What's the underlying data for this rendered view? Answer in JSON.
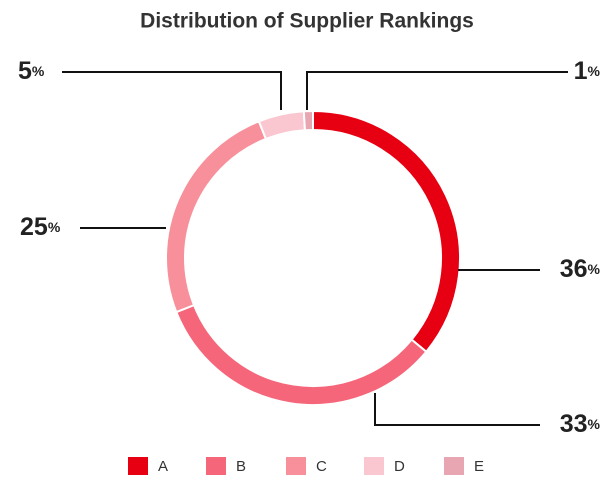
{
  "chart_data": {
    "type": "donut",
    "title": "Distribution of Supplier Rankings",
    "categories": [
      "A",
      "B",
      "C",
      "D",
      "E"
    ],
    "values": [
      36,
      33,
      25,
      5,
      1
    ],
    "value_labels": [
      "36%",
      "33%",
      "25%",
      "5%",
      "1%"
    ],
    "colors": [
      "#e60012",
      "#f5667a",
      "#f7909a",
      "#fac6cf",
      "#e8a6b3"
    ],
    "legend": "bottom"
  }
}
